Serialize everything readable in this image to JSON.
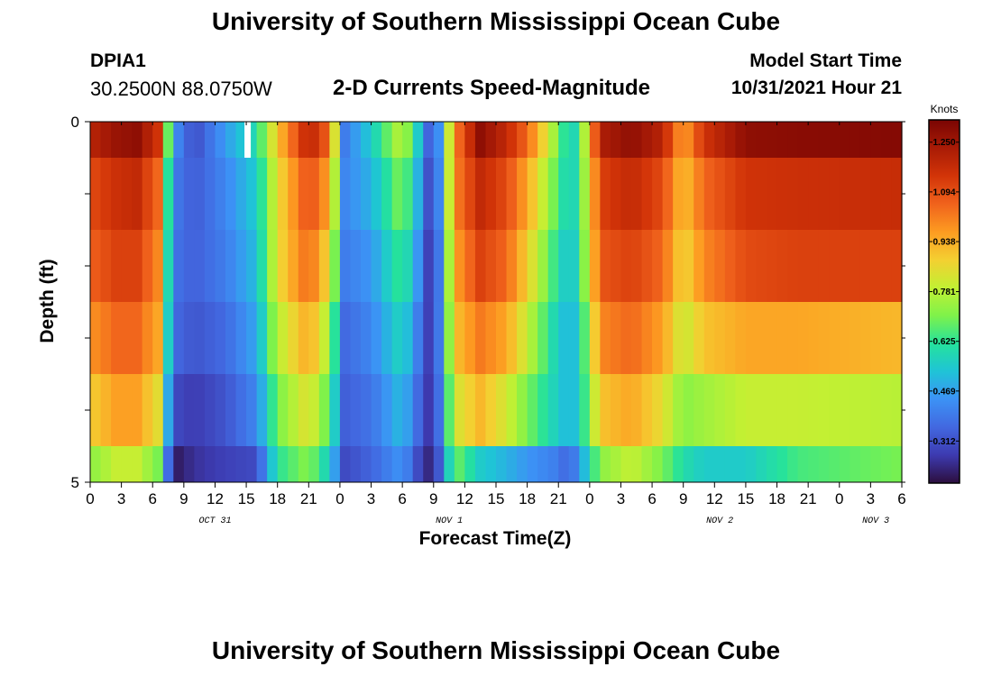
{
  "header": {
    "title": "University of Southern Mississippi Ocean Cube",
    "station_id": "DPIA1",
    "coordinates": "30.2500N  88.0750W",
    "subtitle": "2-D Currents Speed-Magnitude",
    "model_start_label": "Model Start Time",
    "model_start_value": "10/31/2021 Hour 21"
  },
  "footer": {
    "title": "University of Southern Mississippi Ocean Cube"
  },
  "chart_data": {
    "type": "heatmap",
    "title": "2-D Currents Speed-Magnitude",
    "xlabel": "Forecast Time(Z)",
    "ylabel": "Depth (ft)",
    "x_hours": [
      0,
      3,
      6,
      9,
      12,
      15,
      18,
      21,
      24,
      27,
      30,
      33,
      36,
      39,
      42,
      45,
      48,
      51,
      54,
      57,
      60,
      63,
      66,
      69,
      72,
      75,
      78
    ],
    "x_tick_labels": [
      "0",
      "3",
      "6",
      "9",
      "12",
      "15",
      "18",
      "21",
      "0",
      "3",
      "6",
      "9",
      "12",
      "15",
      "18",
      "21",
      "0",
      "3",
      "6",
      "9",
      "12",
      "15",
      "18",
      "21",
      "0",
      "3",
      "6"
    ],
    "date_labels": [
      {
        "text": "OCT 31",
        "hour": 12
      },
      {
        "text": "NOV 1",
        "hour": 34.5
      },
      {
        "text": "NOV 2",
        "hour": 60.5
      },
      {
        "text": "NOV 3",
        "hour": 75.5
      }
    ],
    "y_ticks": [
      0,
      5
    ],
    "y_range": [
      0,
      5
    ],
    "colorbar": {
      "label": "Knots",
      "ticks": [
        1.25,
        1.094,
        0.938,
        0.781,
        0.625,
        0.469,
        0.312
      ],
      "tick_labels": [
        "1.250",
        "1.094",
        "0.938",
        "0.781",
        "0.625",
        "0.469",
        "0.312"
      ],
      "range": [
        0.18,
        1.32
      ],
      "colors": [
        "#2c0e3d",
        "#3d3ab0",
        "#4268e0",
        "#3c92f5",
        "#1fc4d6",
        "#25e29c",
        "#7ff24a",
        "#c2f033",
        "#f4cf31",
        "#fd9b21",
        "#f0621c",
        "#d23408",
        "#a81b06",
        "#7a0503"
      ]
    },
    "depth_layers": [
      {
        "depth_range": [
          0.0,
          0.5
        ],
        "speeds": [
          1.2,
          1.26,
          1.28,
          1.15,
          0.45,
          0.3,
          0.46,
          0.6,
          0.9,
          1.2,
          1.05,
          0.4,
          0.55,
          0.8,
          0.55,
          0.25,
          1.0,
          1.28,
          1.18,
          1.05,
          0.7,
          0.55,
          0.62,
          1.22,
          1.28,
          1.2,
          0.95,
          1.15,
          1.28,
          1.29,
          1.3
        ]
      },
      {
        "depth_range": [
          0.5,
          1.5
        ],
        "speeds": [
          1.1,
          1.16,
          1.18,
          1.05,
          0.4,
          0.33,
          0.42,
          0.55,
          0.85,
          1.1,
          0.95,
          0.42,
          0.5,
          0.72,
          0.5,
          0.22,
          1.0,
          1.18,
          1.1,
          0.95,
          0.65,
          0.55,
          0.62,
          1.12,
          1.18,
          1.1,
          0.9,
          1.05,
          1.15,
          1.16,
          1.17
        ]
      },
      {
        "depth_range": [
          1.5,
          2.5
        ],
        "speeds": [
          1.06,
          1.12,
          1.12,
          1.0,
          0.38,
          0.34,
          0.4,
          0.52,
          0.85,
          1.05,
          0.85,
          0.4,
          0.45,
          0.65,
          0.45,
          0.2,
          0.95,
          1.12,
          1.05,
          0.88,
          0.6,
          0.52,
          0.6,
          1.08,
          1.12,
          1.05,
          0.86,
          1.0,
          1.1,
          1.12,
          1.12
        ]
      },
      {
        "depth_range": [
          2.5,
          3.5
        ],
        "speeds": [
          0.98,
          1.05,
          1.05,
          0.95,
          0.36,
          0.32,
          0.36,
          0.48,
          0.78,
          0.95,
          0.75,
          0.36,
          0.42,
          0.58,
          0.4,
          0.22,
          0.9,
          1.02,
          0.95,
          0.8,
          0.55,
          0.5,
          0.55,
          1.0,
          1.05,
          0.96,
          0.8,
          0.9,
          0.95,
          0.95,
          0.92
        ]
      },
      {
        "depth_range": [
          3.5,
          4.5
        ],
        "speeds": [
          0.88,
          0.96,
          0.96,
          0.85,
          0.3,
          0.27,
          0.32,
          0.42,
          0.7,
          0.85,
          0.66,
          0.34,
          0.38,
          0.52,
          0.36,
          0.22,
          0.82,
          0.92,
          0.82,
          0.7,
          0.55,
          0.5,
          0.55,
          0.9,
          0.95,
          0.85,
          0.72,
          0.75,
          0.8,
          0.8,
          0.78
        ]
      },
      {
        "depth_range": [
          4.5,
          5.0
        ],
        "speeds": [
          0.72,
          0.8,
          0.8,
          0.7,
          0.2,
          0.25,
          0.28,
          0.3,
          0.62,
          0.72,
          0.55,
          0.3,
          0.35,
          0.45,
          0.3,
          0.2,
          0.7,
          0.55,
          0.5,
          0.45,
          0.4,
          0.34,
          0.45,
          0.72,
          0.8,
          0.7,
          0.6,
          0.55,
          0.55,
          0.65,
          0.7
        ]
      }
    ],
    "layer_sample_hours": [
      0,
      2.5,
      4.5,
      6.5,
      8,
      10,
      13,
      16,
      18,
      21,
      23,
      24.5,
      27,
      30,
      31.5,
      33,
      35,
      37.5,
      40,
      42,
      45,
      46,
      47,
      49,
      52,
      55,
      57,
      59,
      63,
      68,
      78
    ],
    "blank_cells": [
      {
        "hour": 15,
        "depth_range": [
          0.0,
          0.5
        ]
      }
    ]
  }
}
